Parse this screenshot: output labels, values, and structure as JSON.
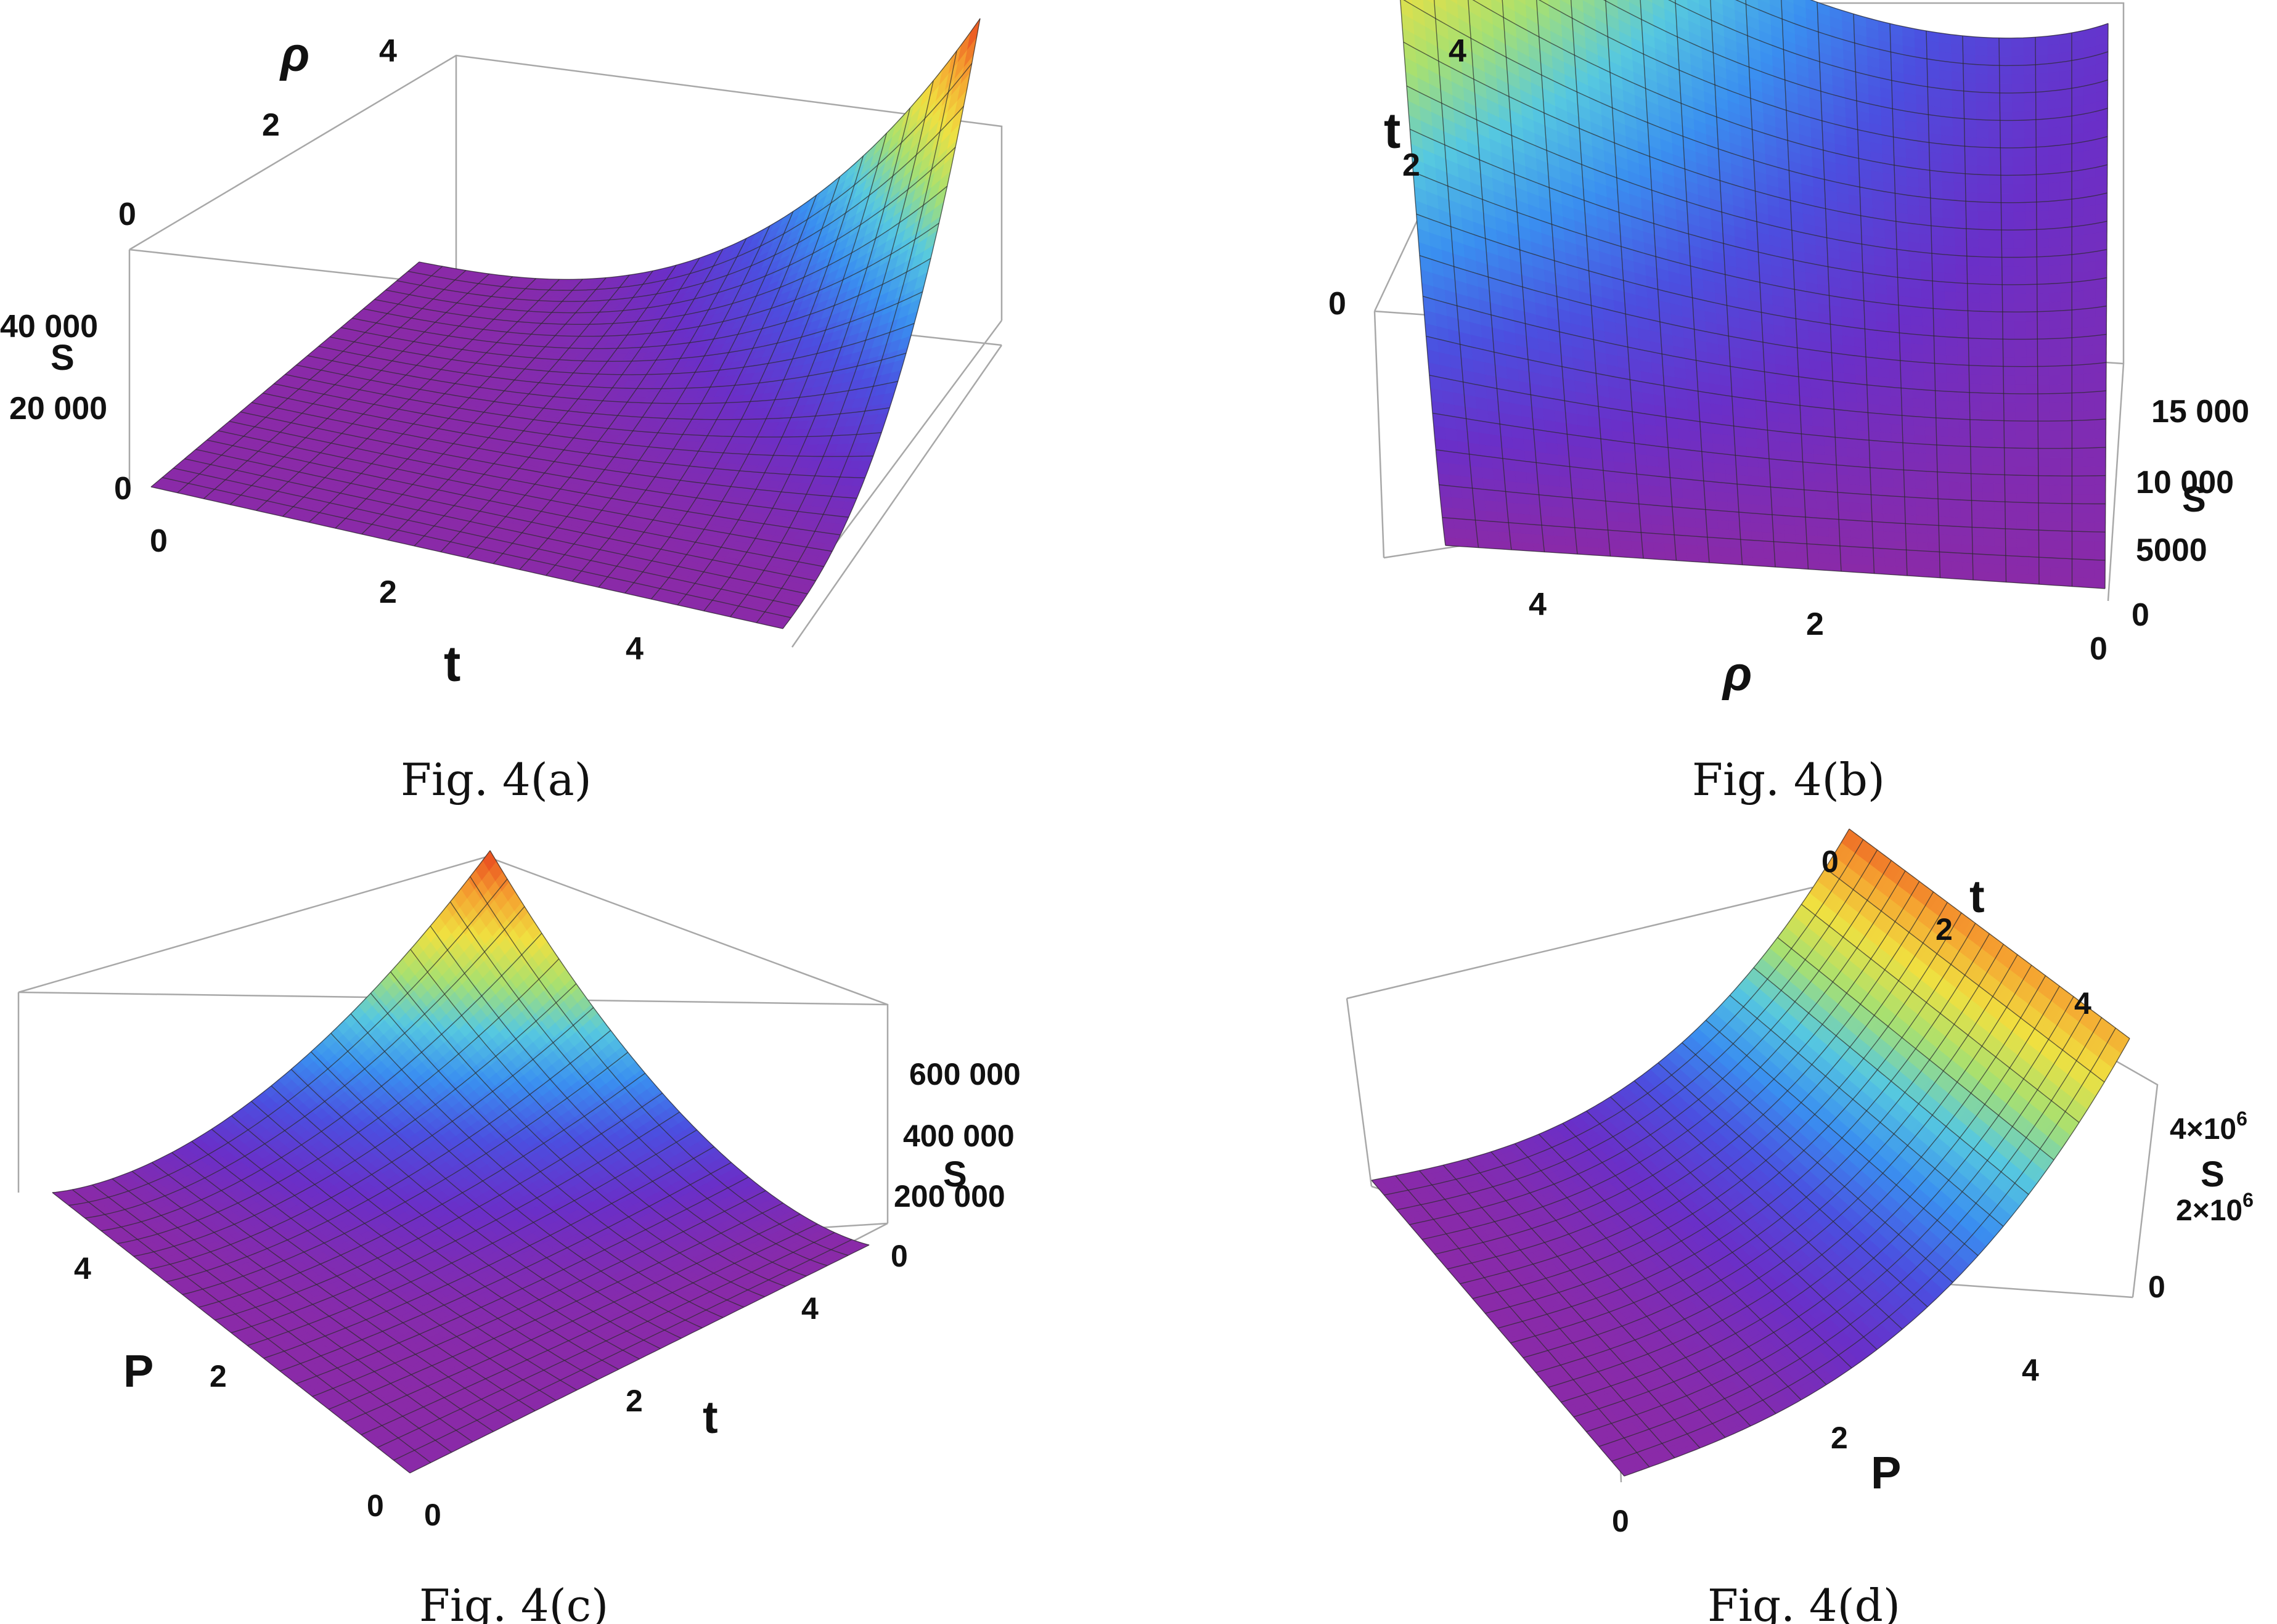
{
  "panels": [
    {
      "caption": "Fig. 4(a)",
      "axes": {
        "rho": {
          "label": "ρ",
          "ticks": [
            "0",
            "2",
            "4"
          ]
        },
        "s": {
          "label": "S",
          "ticks": [
            "0",
            "20 000",
            "40 000"
          ]
        },
        "t": {
          "label": "t",
          "ticks": [
            "0",
            "2",
            "4"
          ]
        }
      }
    },
    {
      "caption": "Fig. 4(b)",
      "axes": {
        "t": {
          "label": "t",
          "ticks": [
            "0",
            "2",
            "4"
          ]
        },
        "s": {
          "label": "S",
          "ticks": [
            "0",
            "5000",
            "10 000",
            "15 000"
          ]
        },
        "rho": {
          "label": "ρ",
          "ticks": [
            "4",
            "2",
            "0"
          ]
        }
      }
    },
    {
      "caption": "Fig. 4(c)",
      "axes": {
        "p": {
          "label": "P",
          "ticks": [
            "0",
            "2",
            "4"
          ]
        },
        "t": {
          "label": "t",
          "ticks": [
            "0",
            "2",
            "4"
          ]
        },
        "s": {
          "label": "S",
          "ticks": [
            "0",
            "200 000",
            "400 000",
            "600 000"
          ]
        }
      }
    },
    {
      "caption": "Fig. 4(d)",
      "axes": {
        "t": {
          "label": "t",
          "ticks": [
            "0",
            "2",
            "4"
          ]
        },
        "s": {
          "label": "S",
          "ticks": [
            "0",
            "2×10",
            "4×10"
          ],
          "tick_exponent": "6"
        },
        "p": {
          "label": "P",
          "ticks": [
            "0",
            "2",
            "4"
          ]
        }
      }
    }
  ],
  "colors": {
    "box": "#a8a8a8",
    "mesh": "#2b2b2b",
    "colormap": [
      "#8a2aa8",
      "#6a2fc8",
      "#4b4fe0",
      "#3a8ff0",
      "#56c8e0",
      "#a8e070",
      "#f0e040",
      "#f5a030",
      "#e8401e"
    ]
  }
}
